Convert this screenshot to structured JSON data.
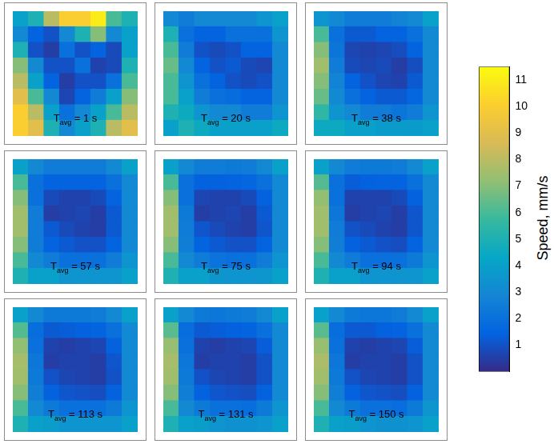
{
  "chart_data": {
    "type": "heatmap",
    "tick_labels": false,
    "colorbar": {
      "label": "Speed, mm/s",
      "range": [
        0,
        11.5
      ],
      "ticks": [
        1,
        2,
        3,
        4,
        5,
        6,
        7,
        8,
        9,
        10,
        11
      ]
    },
    "panels": [
      {
        "label": "T",
        "label_sub": "avg",
        "label_text": "= 1 s",
        "values": [
          [
            4,
            5,
            8,
            10,
            10,
            11,
            6,
            5
          ],
          [
            3,
            1.5,
            1,
            3,
            5,
            7,
            3,
            4
          ],
          [
            5,
            1,
            0.5,
            2,
            1,
            1.5,
            0.8,
            4
          ],
          [
            7,
            3,
            1,
            1,
            2,
            0.6,
            0.8,
            5
          ],
          [
            8,
            4,
            1.5,
            0.5,
            1,
            1,
            2,
            6
          ],
          [
            9,
            6,
            3,
            0.7,
            1.5,
            2.5,
            4,
            7
          ],
          [
            10,
            8,
            4,
            2,
            3,
            4,
            6,
            8
          ],
          [
            10,
            9,
            5,
            3,
            4,
            5,
            8,
            9
          ]
        ]
      },
      {
        "label": "T",
        "label_sub": "avg",
        "label_text": "= 20 s",
        "values": [
          [
            3,
            2.5,
            3,
            3,
            3,
            3,
            3.5,
            4
          ],
          [
            5,
            2,
            1.5,
            1.5,
            2,
            2,
            2,
            3.5
          ],
          [
            6,
            2.5,
            1,
            0.8,
            1,
            1.5,
            1.5,
            3
          ],
          [
            6.5,
            3,
            1.5,
            1,
            1.2,
            0.8,
            0.7,
            3
          ],
          [
            6,
            3.5,
            2,
            1.5,
            1,
            0.8,
            1,
            3
          ],
          [
            6,
            4,
            2.5,
            2,
            1.8,
            1.5,
            1.5,
            3
          ],
          [
            5,
            4.5,
            3.5,
            3,
            3,
            2.5,
            2.5,
            3.5
          ],
          [
            4,
            5,
            4.5,
            4,
            4,
            4,
            4,
            4.5
          ]
        ]
      },
      {
        "label": "T",
        "label_sub": "avg",
        "label_text": "= 38 s",
        "values": [
          [
            3.5,
            3,
            2.5,
            2.5,
            2.5,
            2.8,
            3,
            4
          ],
          [
            6,
            2,
            1.2,
            1.2,
            1.5,
            1.5,
            2,
            3
          ],
          [
            7,
            2.2,
            0.7,
            0.6,
            0.7,
            0.9,
            1.5,
            3
          ],
          [
            7.5,
            2.5,
            0.8,
            0.7,
            0.8,
            0.5,
            0.9,
            3
          ],
          [
            7,
            2.8,
            1.5,
            1,
            0.7,
            0.6,
            1.2,
            3
          ],
          [
            6.5,
            3,
            2,
            1.5,
            1.2,
            1.2,
            1.6,
            3
          ],
          [
            5.5,
            3.5,
            3,
            2.5,
            2.5,
            2.2,
            2.5,
            3.5
          ],
          [
            4.5,
            4.5,
            4,
            4,
            3.8,
            3.8,
            3.8,
            4
          ]
        ]
      },
      {
        "label": "T",
        "label_sub": "avg",
        "label_text": "= 57 s",
        "values": [
          [
            4,
            3,
            2.5,
            2.5,
            2.5,
            2.5,
            3,
            4
          ],
          [
            6,
            2,
            1.5,
            1.5,
            1.5,
            1.5,
            2,
            3
          ],
          [
            7,
            2,
            0.8,
            0.6,
            0.6,
            0.8,
            1.5,
            3
          ],
          [
            7.5,
            2.5,
            0.5,
            0.6,
            0.7,
            0.5,
            1.2,
            3
          ],
          [
            7.5,
            2.5,
            1.2,
            0.8,
            0.6,
            0.5,
            1.2,
            3
          ],
          [
            7,
            2.5,
            1.5,
            1.2,
            1,
            1,
            1.5,
            3
          ],
          [
            6,
            3,
            2.5,
            2,
            2,
            2,
            2.5,
            3.5
          ],
          [
            5,
            4,
            4,
            3.5,
            3.5,
            3.5,
            3.5,
            4
          ]
        ]
      },
      {
        "label": "T",
        "label_sub": "avg",
        "label_text": "= 75 s",
        "values": [
          [
            4,
            3,
            2.5,
            2.5,
            2.4,
            2.5,
            3,
            4
          ],
          [
            6,
            2,
            1.4,
            1.4,
            1.5,
            1.6,
            2,
            3
          ],
          [
            7,
            2,
            0.7,
            0.6,
            0.6,
            0.8,
            1.4,
            3
          ],
          [
            7.5,
            2.4,
            0.5,
            0.6,
            0.7,
            0.5,
            1.2,
            3
          ],
          [
            7.5,
            2.5,
            1.1,
            0.8,
            0.6,
            0.5,
            1.1,
            3
          ],
          [
            7,
            2.6,
            1.5,
            1.2,
            1,
            1,
            1.5,
            3
          ],
          [
            6,
            3,
            2.5,
            2.1,
            2,
            2,
            2.5,
            3.5
          ],
          [
            5,
            4,
            4,
            3.6,
            3.5,
            3.5,
            3.6,
            4
          ]
        ]
      },
      {
        "label": "T",
        "label_sub": "avg",
        "label_text": "= 94 s",
        "values": [
          [
            4,
            3,
            2.5,
            2.4,
            2.4,
            2.5,
            3,
            4
          ],
          [
            6.2,
            2,
            1.3,
            1.4,
            1.5,
            1.5,
            2,
            3
          ],
          [
            7.2,
            2,
            0.6,
            0.6,
            0.6,
            0.8,
            1.4,
            3
          ],
          [
            7.5,
            2.3,
            0.5,
            0.6,
            0.7,
            0.5,
            1.1,
            3
          ],
          [
            7.5,
            2.5,
            1,
            0.8,
            0.6,
            0.5,
            1.1,
            3
          ],
          [
            7,
            2.6,
            1.4,
            1.2,
            1,
            0.9,
            1.5,
            3
          ],
          [
            6,
            3,
            2.5,
            2,
            2,
            2,
            2.4,
            3.5
          ],
          [
            5,
            4,
            4,
            3.5,
            3.5,
            3.5,
            3.5,
            4
          ]
        ]
      },
      {
        "label": "T",
        "label_sub": "avg",
        "label_text": "= 113 s",
        "values": [
          [
            4,
            3,
            2.4,
            2.4,
            2.4,
            2.5,
            3,
            4
          ],
          [
            6.2,
            1.9,
            1.2,
            1.3,
            1.4,
            1.5,
            2,
            3
          ],
          [
            7.2,
            2,
            0.6,
            0.5,
            0.6,
            0.7,
            1.4,
            3
          ],
          [
            7.6,
            2.3,
            0.5,
            0.6,
            0.6,
            0.5,
            1.1,
            3
          ],
          [
            7.5,
            2.4,
            1,
            0.7,
            0.6,
            0.5,
            1,
            3
          ],
          [
            7,
            2.6,
            1.4,
            1.1,
            1,
            0.9,
            1.4,
            3
          ],
          [
            6,
            3,
            2.4,
            2,
            2,
            2,
            2.4,
            3.5
          ],
          [
            5,
            4,
            3.9,
            3.5,
            3.5,
            3.5,
            3.5,
            4
          ]
        ]
      },
      {
        "label": "T",
        "label_sub": "avg",
        "label_text": "= 131 s",
        "values": [
          [
            4,
            3,
            2.4,
            2.3,
            2.4,
            2.5,
            3,
            4
          ],
          [
            6.3,
            1.9,
            1.2,
            1.3,
            1.4,
            1.5,
            2,
            3
          ],
          [
            7.3,
            2,
            0.6,
            0.5,
            0.6,
            0.7,
            1.3,
            3
          ],
          [
            7.6,
            2.3,
            0.5,
            0.6,
            0.6,
            0.5,
            1,
            3
          ],
          [
            7.5,
            2.4,
            1,
            0.7,
            0.6,
            0.5,
            1,
            3
          ],
          [
            7,
            2.6,
            1.4,
            1.1,
            1,
            0.9,
            1.4,
            3
          ],
          [
            6,
            3,
            2.4,
            2,
            2,
            1.9,
            2.4,
            3.5
          ],
          [
            5,
            4,
            3.9,
            3.5,
            3.4,
            3.4,
            3.5,
            4
          ]
        ]
      },
      {
        "label": "T",
        "label_sub": "avg",
        "label_text": "= 150 s",
        "values": [
          [
            4,
            3,
            2.4,
            2.3,
            2.3,
            2.5,
            3,
            4
          ],
          [
            6.3,
            1.9,
            1.2,
            1.2,
            1.4,
            1.5,
            2,
            3
          ],
          [
            7.3,
            2,
            0.6,
            0.5,
            0.6,
            0.7,
            1.3,
            3
          ],
          [
            7.7,
            2.3,
            0.5,
            0.6,
            0.6,
            0.5,
            1,
            3
          ],
          [
            7.5,
            2.4,
            1,
            0.7,
            0.6,
            0.5,
            1,
            3
          ],
          [
            7,
            2.6,
            1.4,
            1.1,
            1,
            0.9,
            1.4,
            3
          ],
          [
            6,
            3,
            2.4,
            2,
            2,
            1.9,
            2.4,
            3.5
          ],
          [
            5,
            4,
            3.9,
            3.5,
            3.4,
            3.4,
            3.5,
            4
          ]
        ]
      }
    ]
  }
}
